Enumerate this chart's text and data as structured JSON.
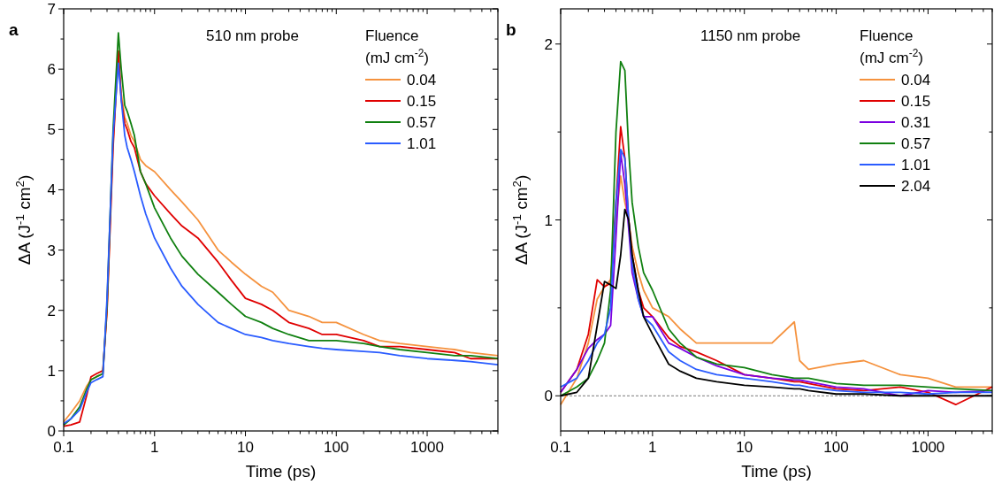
{
  "chart_data": [
    {
      "type": "line",
      "title": "a",
      "xlabel": "Time (ps)",
      "ylabel": "ΔA (J$^{-1}$ cm$^{2}$)",
      "annotations": [
        "510 nm probe"
      ],
      "legend_title": "Fluence\n(mJ cm$^{-2}$)",
      "legend": "top right",
      "log": "x",
      "grid": false,
      "xlim": [
        0.1,
        6000
      ],
      "xticks": [
        0.1,
        1,
        10,
        100,
        1000
      ],
      "ylim": [
        0,
        7
      ],
      "yticks": [
        0,
        1,
        2,
        3,
        4,
        5,
        6,
        7
      ],
      "x": [
        0.1,
        0.12,
        0.15,
        0.18,
        0.2,
        0.23,
        0.27,
        0.3,
        0.35,
        0.4,
        0.43,
        0.47,
        0.5,
        0.55,
        0.6,
        0.7,
        0.8,
        1,
        1.5,
        2,
        3,
        5,
        7,
        10,
        15,
        20,
        30,
        50,
        70,
        100,
        200,
        300,
        500,
        1000,
        2000,
        3000,
        6000
      ],
      "series": [
        {
          "name": "0.04",
          "color": "#f5923e",
          "values": [
            0.15,
            0.3,
            0.5,
            0.75,
            0.85,
            0.9,
            0.95,
            2.0,
            4.8,
            6.3,
            5.6,
            5.2,
            5.1,
            4.9,
            4.8,
            4.5,
            4.4,
            4.3,
            4.0,
            3.8,
            3.5,
            3.0,
            2.8,
            2.6,
            2.4,
            2.3,
            2.0,
            1.9,
            1.8,
            1.8,
            1.6,
            1.5,
            1.45,
            1.4,
            1.35,
            1.3,
            1.25
          ]
        },
        {
          "name": "0.15",
          "color": "#e00000",
          "values": [
            0.08,
            0.1,
            0.15,
            0.6,
            0.9,
            0.95,
            1.0,
            2.0,
            4.7,
            6.3,
            5.5,
            5.1,
            5.0,
            4.8,
            4.7,
            4.3,
            4.1,
            3.9,
            3.6,
            3.4,
            3.2,
            2.8,
            2.5,
            2.2,
            2.1,
            2.0,
            1.8,
            1.7,
            1.6,
            1.6,
            1.5,
            1.4,
            1.4,
            1.35,
            1.3,
            1.2,
            1.2
          ]
        },
        {
          "name": "0.57",
          "color": "#108010",
          "values": [
            0.1,
            0.2,
            0.4,
            0.7,
            0.85,
            0.9,
            0.95,
            2.1,
            5.0,
            6.6,
            6.0,
            5.4,
            5.3,
            5.1,
            4.9,
            4.3,
            4.1,
            3.7,
            3.2,
            2.9,
            2.6,
            2.3,
            2.1,
            1.9,
            1.8,
            1.7,
            1.6,
            1.5,
            1.5,
            1.5,
            1.45,
            1.4,
            1.35,
            1.3,
            1.25,
            1.25,
            1.2
          ]
        },
        {
          "name": "1.01",
          "color": "#2a5cff",
          "values": [
            0.12,
            0.2,
            0.35,
            0.65,
            0.8,
            0.85,
            0.9,
            2.2,
            4.9,
            6.1,
            5.5,
            4.9,
            4.7,
            4.5,
            4.3,
            3.9,
            3.6,
            3.2,
            2.7,
            2.4,
            2.1,
            1.8,
            1.7,
            1.6,
            1.55,
            1.5,
            1.45,
            1.4,
            1.37,
            1.35,
            1.32,
            1.3,
            1.25,
            1.2,
            1.17,
            1.15,
            1.1
          ]
        }
      ]
    },
    {
      "type": "line",
      "title": "b",
      "xlabel": "Time (ps)",
      "ylabel": "ΔA (J$^{-1}$ cm$^{2}$)",
      "annotations": [
        "1150 nm probe"
      ],
      "legend_title": "Fluence\n(mJ cm$^{-2}$)",
      "legend": "top right",
      "log": "x",
      "grid": false,
      "xlim": [
        0.1,
        5000
      ],
      "xticks": [
        0.1,
        1,
        10,
        100,
        1000
      ],
      "ylim": [
        -0.2,
        2.2
      ],
      "yticks": [
        0,
        1,
        2
      ],
      "ref_lines": [
        {
          "axis": "y",
          "value": 0,
          "color": "#555555",
          "line_style": "dashed"
        }
      ],
      "x": [
        0.1,
        0.15,
        0.2,
        0.25,
        0.3,
        0.35,
        0.4,
        0.45,
        0.5,
        0.55,
        0.6,
        0.7,
        0.8,
        1,
        1.5,
        2,
        3,
        5,
        10,
        20,
        35,
        40,
        50,
        100,
        200,
        500,
        1000,
        2000,
        5000
      ],
      "series": [
        {
          "name": "0.04",
          "color": "#f5923e",
          "values": [
            -0.05,
            0.1,
            0.3,
            0.55,
            0.62,
            0.66,
            1.0,
            1.25,
            1.1,
            1.0,
            0.85,
            0.7,
            0.6,
            0.5,
            0.45,
            0.38,
            0.3,
            0.3,
            0.3,
            0.3,
            0.42,
            0.2,
            0.15,
            0.18,
            0.2,
            0.12,
            0.1,
            0.05,
            0.05
          ]
        },
        {
          "name": "0.15",
          "color": "#e00000",
          "values": [
            0.02,
            0.15,
            0.35,
            0.66,
            0.62,
            0.64,
            1.1,
            1.53,
            1.35,
            1.0,
            0.8,
            0.6,
            0.5,
            0.45,
            0.33,
            0.28,
            0.25,
            0.2,
            0.12,
            0.1,
            0.08,
            0.08,
            0.07,
            0.04,
            0.03,
            0.05,
            0.02,
            -0.05,
            0.05
          ]
        },
        {
          "name": "0.31",
          "color": "#7b00e0",
          "values": [
            0.02,
            0.15,
            0.27,
            0.32,
            0.35,
            0.4,
            0.9,
            1.38,
            1.2,
            0.95,
            0.7,
            0.55,
            0.45,
            0.45,
            0.3,
            0.27,
            0.22,
            0.17,
            0.12,
            0.1,
            0.09,
            0.09,
            0.08,
            0.05,
            0.04,
            0.0,
            0.03,
            0.02,
            0.03
          ]
        },
        {
          "name": "0.57",
          "color": "#108010",
          "values": [
            0.0,
            0.05,
            0.1,
            0.2,
            0.3,
            0.6,
            1.5,
            1.9,
            1.85,
            1.4,
            1.1,
            0.85,
            0.7,
            0.6,
            0.38,
            0.3,
            0.22,
            0.18,
            0.16,
            0.12,
            0.1,
            0.1,
            0.1,
            0.07,
            0.06,
            0.06,
            0.05,
            0.04,
            0.03
          ]
        },
        {
          "name": "1.01",
          "color": "#2a5cff",
          "values": [
            0.05,
            0.1,
            0.2,
            0.3,
            0.35,
            0.5,
            1.1,
            1.4,
            1.35,
            1.0,
            0.75,
            0.55,
            0.45,
            0.4,
            0.25,
            0.2,
            0.15,
            0.12,
            0.1,
            0.08,
            0.06,
            0.06,
            0.05,
            0.03,
            0.02,
            0.02,
            0.01,
            0.02,
            0.02
          ]
        },
        {
          "name": "2.04",
          "color": "#000000",
          "values": [
            0.0,
            0.02,
            0.1,
            0.4,
            0.65,
            0.63,
            0.61,
            0.8,
            1.06,
            1.0,
            0.8,
            0.6,
            0.45,
            0.35,
            0.18,
            0.14,
            0.1,
            0.08,
            0.06,
            0.05,
            0.04,
            0.04,
            0.03,
            0.01,
            0.01,
            0.0,
            0.0,
            0.0,
            0.0
          ]
        }
      ]
    }
  ]
}
